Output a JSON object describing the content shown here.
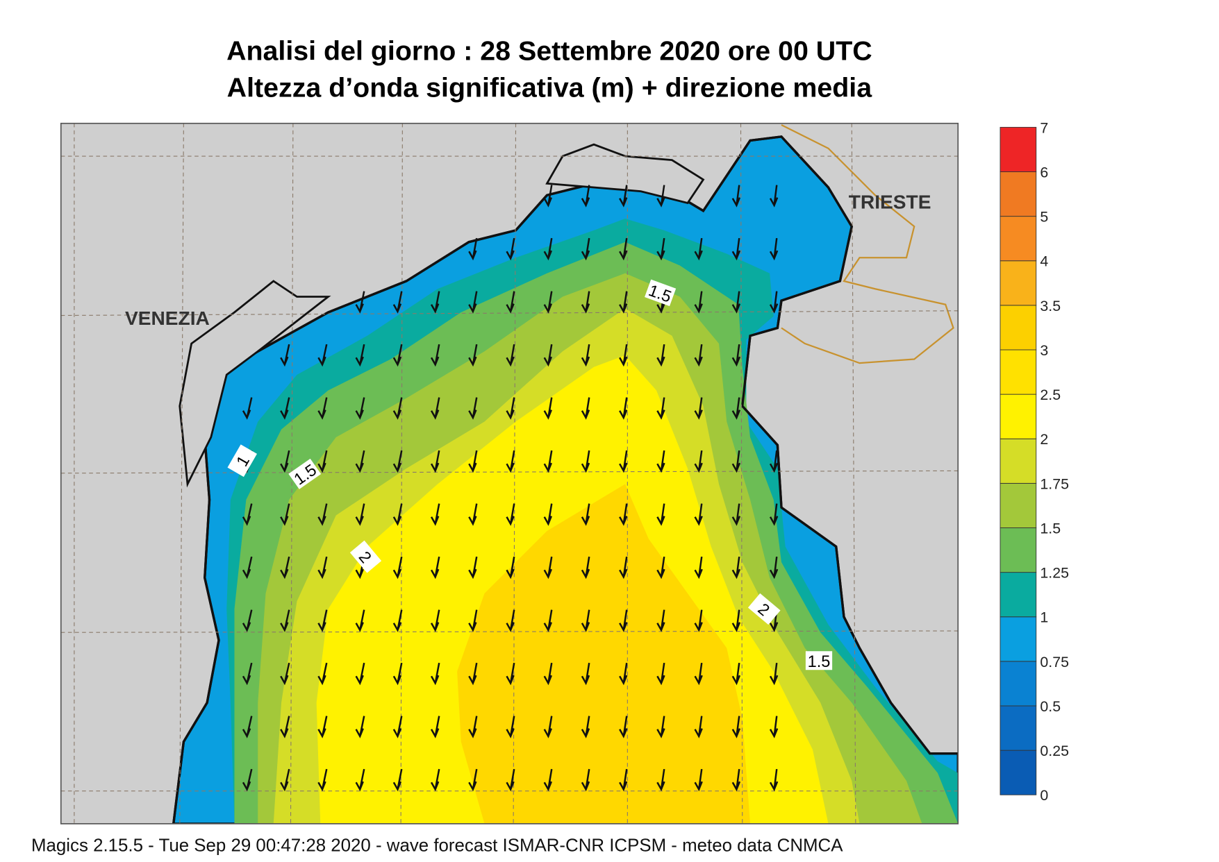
{
  "title": [
    "Analisi del giorno :  28 Settembre 2020   ore 00 UTC",
    "Altezza d’onda significativa (m) + direzione media"
  ],
  "map": {
    "cities": [
      "VENEZIA",
      "TRIESTE"
    ],
    "contour_labels": [
      "1.5",
      "1",
      "1.5",
      "2",
      "2",
      "1.5"
    ]
  },
  "legend": {
    "levels": [
      0,
      0.25,
      0.5,
      0.75,
      1,
      1.25,
      1.5,
      1.75,
      2,
      2.5,
      3,
      3.5,
      4,
      5,
      6,
      7
    ],
    "colors": [
      "#0a5cb4",
      "#0b6cc2",
      "#0a82d2",
      "#0a9fe0",
      "#0aab9f",
      "#6cbd55",
      "#a3c83a",
      "#d5dd27",
      "#fff200",
      "#ffe100",
      "#fcd000",
      "#f9b21a",
      "#f68b22",
      "#f07a22",
      "#ee2526",
      "#ec1761"
    ]
  },
  "footer": "Magics 2.15.5 - Tue Sep 29 00:47:28 2020 - wave forecast  ISMAR-CNR  ICPSM - meteo data   CNMCA"
}
